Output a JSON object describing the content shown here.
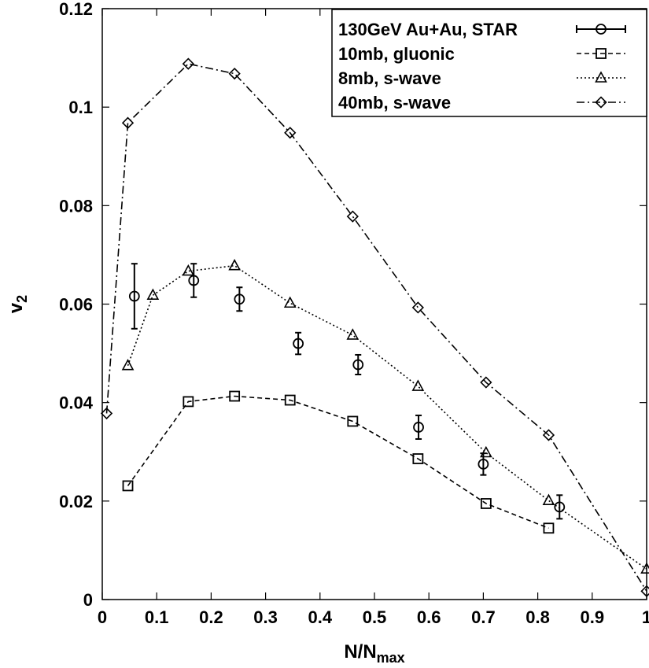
{
  "chart_data": {
    "type": "line",
    "xlabel": "N/N",
    "xlabel_sub": "max",
    "ylabel": "v",
    "ylabel_sub": "2",
    "xlim": [
      0,
      1
    ],
    "ylim": [
      0,
      0.12
    ],
    "x_ticks": [
      0,
      0.1,
      0.2,
      0.3,
      0.4,
      0.5,
      0.6,
      0.7,
      0.8,
      0.9,
      1
    ],
    "x_tick_labels": [
      "0",
      "0.1",
      "0.2",
      "0.3",
      "0.4",
      "0.5",
      "0.6",
      "0.7",
      "0.8",
      "0.9",
      "1"
    ],
    "y_ticks": [
      0,
      0.02,
      0.04,
      0.06,
      0.08,
      0.1,
      0.12
    ],
    "y_tick_labels": [
      "0",
      "0.02",
      "0.04",
      "0.06",
      "0.08",
      "0.1",
      "0.12"
    ],
    "grid": false,
    "legend_position": "top-right",
    "series": [
      {
        "name": "130GeV Au+Au, STAR",
        "marker": "circle",
        "line": "none",
        "errorbars": true,
        "x": [
          0.059,
          0.168,
          0.252,
          0.36,
          0.47,
          0.581,
          0.7,
          0.84
        ],
        "y": [
          0.0616,
          0.0648,
          0.061,
          0.052,
          0.0477,
          0.035,
          0.0275,
          0.0188
        ],
        "err": [
          0.0066,
          0.0034,
          0.0024,
          0.0022,
          0.002,
          0.0024,
          0.0022,
          0.0024
        ]
      },
      {
        "name": "10mb, gluonic",
        "marker": "square",
        "line": "dashed",
        "x": [
          0.047,
          0.158,
          0.243,
          0.345,
          0.46,
          0.58,
          0.705,
          0.82
        ],
        "y": [
          0.0231,
          0.0402,
          0.0413,
          0.0405,
          0.0362,
          0.0286,
          0.0195,
          0.0145
        ]
      },
      {
        "name": "8mb, s-wave",
        "marker": "triangle",
        "line": "dotted",
        "x": [
          0.047,
          0.093,
          0.158,
          0.243,
          0.345,
          0.46,
          0.58,
          0.705,
          0.82,
          1.0
        ],
        "y": [
          0.0475,
          0.0618,
          0.0667,
          0.0678,
          0.0602,
          0.0537,
          0.0433,
          0.0298,
          0.0201,
          0.0062
        ]
      },
      {
        "name": "40mb, s-wave",
        "marker": "diamond",
        "line": "dashdot",
        "x": [
          0.008,
          0.047,
          0.158,
          0.243,
          0.345,
          0.46,
          0.58,
          0.705,
          0.82,
          1.0
        ],
        "y": [
          0.0378,
          0.0968,
          0.1088,
          0.1068,
          0.0948,
          0.0778,
          0.0593,
          0.0441,
          0.0334,
          0.0017
        ]
      }
    ]
  }
}
